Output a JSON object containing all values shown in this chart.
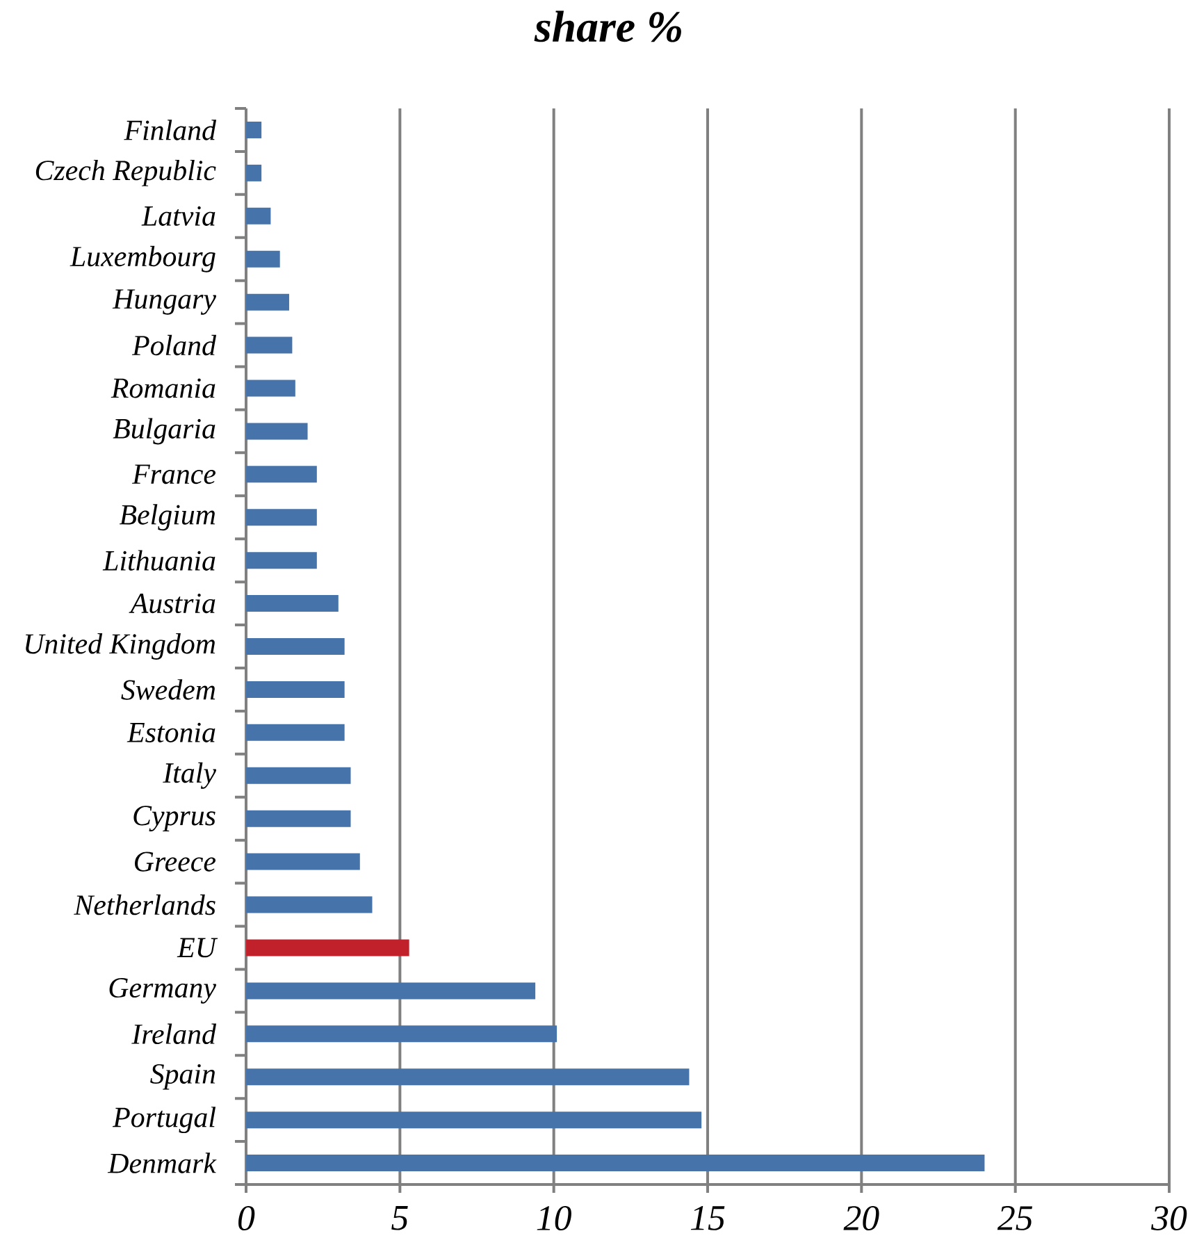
{
  "chart_data": {
    "type": "bar",
    "orientation": "horizontal",
    "title": "share %",
    "categories": [
      "Finland",
      "Czech Republic",
      "Latvia",
      "Luxembourg",
      "Hungary",
      "Poland",
      "Romania",
      "Bulgaria",
      "France",
      "Belgium",
      "Lithuania",
      "Austria",
      "United Kingdom",
      "Swedem",
      "Estonia",
      "Italy",
      "Cyprus",
      "Greece",
      "Netherlands",
      "EU",
      "Germany",
      "Ireland",
      "Spain",
      "Portugal",
      "Denmark"
    ],
    "values": [
      0.5,
      0.5,
      0.8,
      1.1,
      1.4,
      1.5,
      1.6,
      2.0,
      2.3,
      2.3,
      2.3,
      3.0,
      3.2,
      3.2,
      3.2,
      3.4,
      3.4,
      3.7,
      4.1,
      5.3,
      9.4,
      10.1,
      14.4,
      14.8,
      24.0
    ],
    "colors": [
      "#4673aa",
      "#4673aa",
      "#4673aa",
      "#4673aa",
      "#4673aa",
      "#4673aa",
      "#4673aa",
      "#4673aa",
      "#4673aa",
      "#4673aa",
      "#4673aa",
      "#4673aa",
      "#4673aa",
      "#4673aa",
      "#4673aa",
      "#4673aa",
      "#4673aa",
      "#4673aa",
      "#4673aa",
      "#c0212a",
      "#4673aa",
      "#4673aa",
      "#4673aa",
      "#4673aa",
      "#4673aa"
    ],
    "xlim": [
      0,
      30
    ],
    "xticks": [
      0,
      5,
      10,
      15,
      20,
      25,
      30
    ],
    "grid": "x"
  }
}
